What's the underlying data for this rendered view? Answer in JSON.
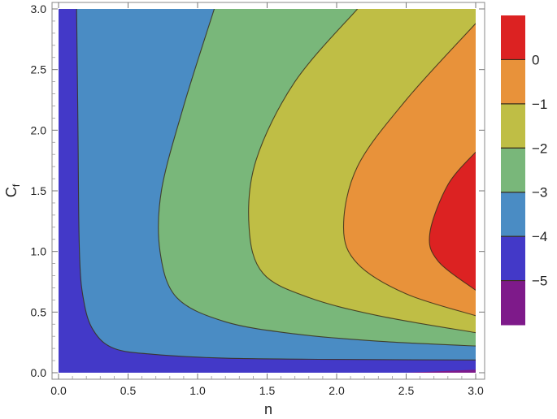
{
  "chart_data": {
    "type": "contour",
    "xlabel": "n",
    "ylabel": "C_f",
    "xlim": [
      0,
      3
    ],
    "ylim": [
      0,
      3
    ],
    "x_ticks": [
      "0.0",
      "0.5",
      "1.0",
      "1.5",
      "2.0",
      "2.5",
      "3.0"
    ],
    "y_ticks": [
      "0.0",
      "0.5",
      "1.0",
      "1.5",
      "2.0",
      "2.5",
      "3.0"
    ],
    "levels": [
      -5,
      -4,
      -3,
      -2,
      -1,
      0
    ],
    "legend_labels": [
      "0",
      "−1",
      "−2",
      "−3",
      "−4",
      "−5"
    ],
    "band_colors": {
      "above_0": "#dc2222",
      "-1_to_0": "#e8923a",
      "-2_to_-1": "#bfbe45",
      "-3_to_-2": "#79b77a",
      "-4_to_-3": "#4a8cc4",
      "-5_to_-4": "#4339c8",
      "below_-5": "#7e1a8a"
    },
    "contours": [
      {
        "level": -4,
        "points": [
          [
            0.13,
            3.0
          ],
          [
            0.14,
            2.0
          ],
          [
            0.15,
            1.0
          ],
          [
            0.18,
            0.6
          ],
          [
            0.25,
            0.35
          ],
          [
            0.4,
            0.2
          ],
          [
            0.7,
            0.15
          ],
          [
            1.2,
            0.12
          ],
          [
            2.0,
            0.11
          ],
          [
            3.0,
            0.105
          ]
        ]
      },
      {
        "level": -3,
        "points": [
          [
            1.12,
            3.0
          ],
          [
            0.9,
            2.2
          ],
          [
            0.74,
            1.5
          ],
          [
            0.73,
            1.0
          ],
          [
            0.85,
            0.62
          ],
          [
            1.2,
            0.42
          ],
          [
            1.7,
            0.32
          ],
          [
            2.3,
            0.26
          ],
          [
            3.0,
            0.22
          ]
        ]
      },
      {
        "level": -2,
        "points": [
          [
            2.15,
            3.0
          ],
          [
            1.7,
            2.4
          ],
          [
            1.42,
            1.75
          ],
          [
            1.37,
            1.2
          ],
          [
            1.47,
            0.82
          ],
          [
            1.8,
            0.62
          ],
          [
            2.3,
            0.47
          ],
          [
            3.0,
            0.33
          ]
        ]
      },
      {
        "level": -1,
        "points": [
          [
            3.0,
            2.88
          ],
          [
            2.5,
            2.25
          ],
          [
            2.15,
            1.7
          ],
          [
            2.05,
            1.2
          ],
          [
            2.15,
            0.9
          ],
          [
            2.5,
            0.65
          ],
          [
            3.0,
            0.47
          ]
        ]
      },
      {
        "level": 0,
        "points": [
          [
            3.0,
            1.82
          ],
          [
            2.8,
            1.55
          ],
          [
            2.67,
            1.15
          ],
          [
            2.73,
            0.92
          ],
          [
            3.0,
            0.68
          ]
        ]
      }
    ]
  }
}
